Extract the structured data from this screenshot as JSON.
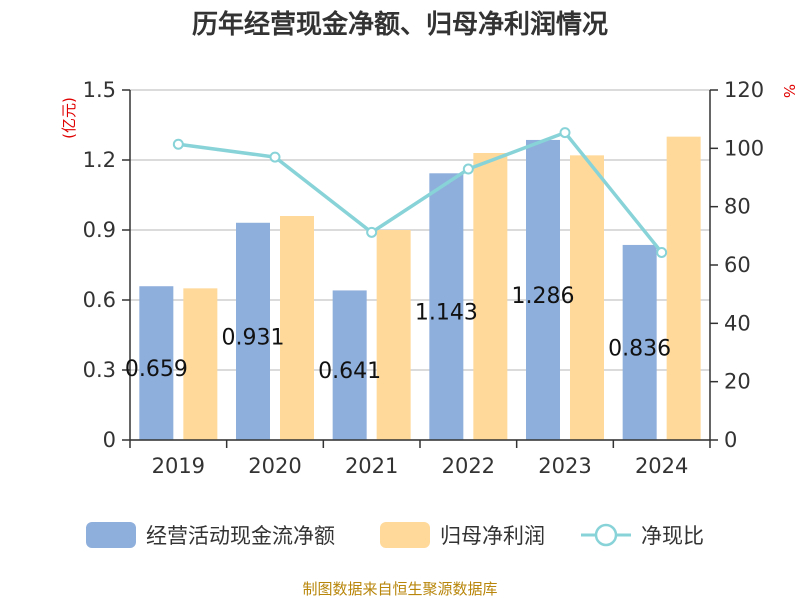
{
  "chart_data": {
    "type": "bar",
    "title": "历年经营现金净额、归母净利润情况",
    "categories": [
      "2019",
      "2020",
      "2021",
      "2022",
      "2023",
      "2024"
    ],
    "y_left": {
      "unit": "(亿元)",
      "ylim": [
        0,
        1.5
      ],
      "ticks": [
        "0",
        "0.3",
        "0.6",
        "0.9",
        "1.2",
        "1.5"
      ]
    },
    "y_right": {
      "unit": "%",
      "ylim": [
        0,
        120
      ],
      "ticks": [
        "0",
        "20",
        "40",
        "60",
        "80",
        "100",
        "120"
      ]
    },
    "series": [
      {
        "name": "经营活动现金流净额",
        "type": "bar",
        "axis": "left",
        "color": "#8eaedb",
        "values": [
          0.659,
          0.931,
          0.641,
          1.143,
          1.286,
          0.836
        ],
        "labels": [
          "0.659",
          "0.931",
          "0.641",
          "1.143",
          "1.286",
          "0.836"
        ]
      },
      {
        "name": "归母净利润",
        "type": "bar",
        "axis": "left",
        "color": "#ffd99a",
        "values": [
          0.65,
          0.96,
          0.9,
          1.23,
          1.22,
          1.3
        ]
      },
      {
        "name": "净现比",
        "type": "line",
        "axis": "right",
        "color": "#88d3d8",
        "values": [
          101.4,
          97,
          71.2,
          92.9,
          105.4,
          64.3
        ]
      }
    ],
    "grid": true,
    "legend_position": "bottom"
  },
  "footer": {
    "source": "制图数据来自恒生聚源数据库"
  }
}
